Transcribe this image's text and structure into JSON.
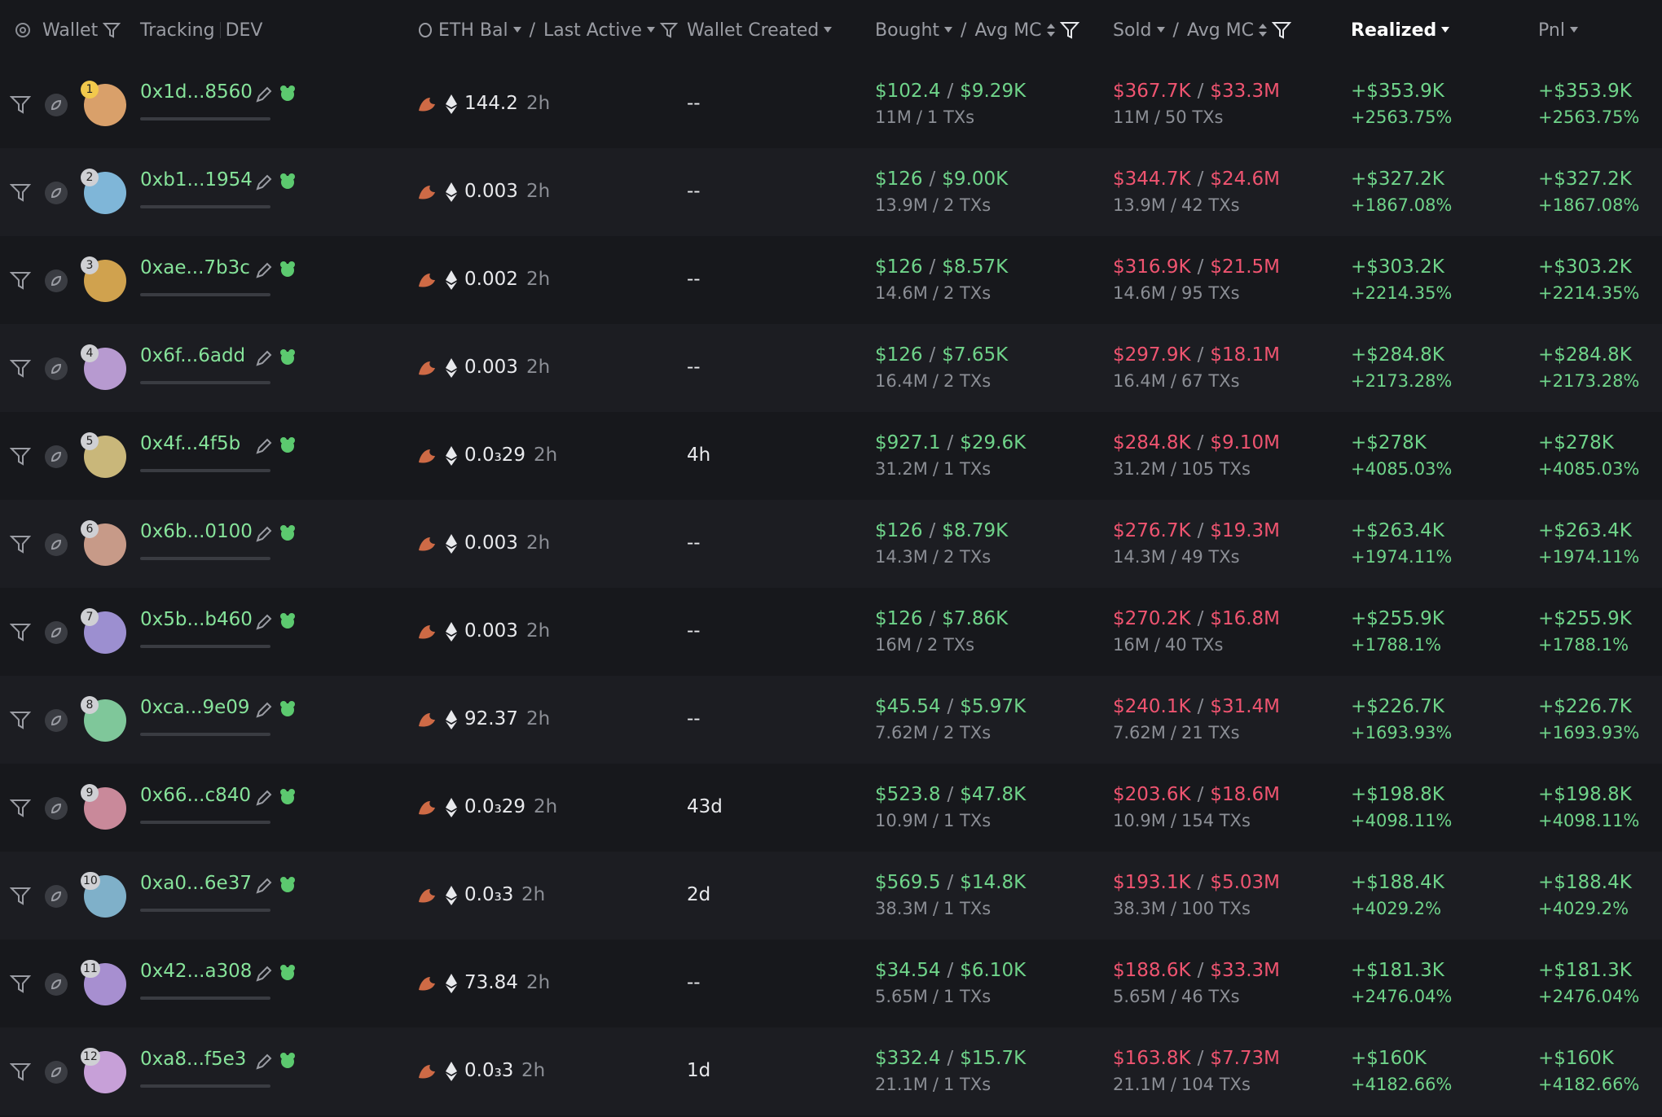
{
  "header": {
    "wallet": "Wallet",
    "tracking": "Tracking",
    "dev": "DEV",
    "eth_bal": "ETH Bal",
    "last_active": "Last Active",
    "wallet_created": "Wallet Created",
    "bought": "Bought",
    "bought_avg_mc": "Avg MC",
    "sold": "Sold",
    "sold_avg_mc": "Avg MC",
    "realized": "Realized",
    "pnl": "Pnl"
  },
  "rows": [
    {
      "rank": "1",
      "wallet": "0x1d...8560",
      "eth_bal": "144.2",
      "last_active": "2h",
      "wallet_created": "--",
      "bought": "$102.4",
      "bought_avg_mc": "$9.29K",
      "bought_amount": "11M",
      "bought_txs": "1 TXs",
      "sold": "$367.7K",
      "sold_avg_mc": "$33.3M",
      "sold_amount": "11M",
      "sold_txs": "50 TXs",
      "realized": "+$353.9K",
      "realized_pct": "+2563.75%",
      "pnl": "+$353.9K",
      "pnl_pct": "+2563.75%"
    },
    {
      "rank": "2",
      "wallet": "0xb1...1954",
      "eth_bal": "0.003",
      "last_active": "2h",
      "wallet_created": "--",
      "bought": "$126",
      "bought_avg_mc": "$9.00K",
      "bought_amount": "13.9M",
      "bought_txs": "2 TXs",
      "sold": "$344.7K",
      "sold_avg_mc": "$24.6M",
      "sold_amount": "13.9M",
      "sold_txs": "42 TXs",
      "realized": "+$327.2K",
      "realized_pct": "+1867.08%",
      "pnl": "+$327.2K",
      "pnl_pct": "+1867.08%"
    },
    {
      "rank": "3",
      "wallet": "0xae...7b3c",
      "eth_bal": "0.002",
      "last_active": "2h",
      "wallet_created": "--",
      "bought": "$126",
      "bought_avg_mc": "$8.57K",
      "bought_amount": "14.6M",
      "bought_txs": "2 TXs",
      "sold": "$316.9K",
      "sold_avg_mc": "$21.5M",
      "sold_amount": "14.6M",
      "sold_txs": "95 TXs",
      "realized": "+$303.2K",
      "realized_pct": "+2214.35%",
      "pnl": "+$303.2K",
      "pnl_pct": "+2214.35%"
    },
    {
      "rank": "4",
      "wallet": "0x6f...6add",
      "eth_bal": "0.003",
      "last_active": "2h",
      "wallet_created": "--",
      "bought": "$126",
      "bought_avg_mc": "$7.65K",
      "bought_amount": "16.4M",
      "bought_txs": "2 TXs",
      "sold": "$297.9K",
      "sold_avg_mc": "$18.1M",
      "sold_amount": "16.4M",
      "sold_txs": "67 TXs",
      "realized": "+$284.8K",
      "realized_pct": "+2173.28%",
      "pnl": "+$284.8K",
      "pnl_pct": "+2173.28%"
    },
    {
      "rank": "5",
      "wallet": "0x4f...4f5b",
      "eth_bal": "0.0₃29",
      "last_active": "2h",
      "wallet_created": "4h",
      "bought": "$927.1",
      "bought_avg_mc": "$29.6K",
      "bought_amount": "31.2M",
      "bought_txs": "1 TXs",
      "sold": "$284.8K",
      "sold_avg_mc": "$9.10M",
      "sold_amount": "31.2M",
      "sold_txs": "105 TXs",
      "realized": "+$278K",
      "realized_pct": "+4085.03%",
      "pnl": "+$278K",
      "pnl_pct": "+4085.03%"
    },
    {
      "rank": "6",
      "wallet": "0x6b...0100",
      "eth_bal": "0.003",
      "last_active": "2h",
      "wallet_created": "--",
      "bought": "$126",
      "bought_avg_mc": "$8.79K",
      "bought_amount": "14.3M",
      "bought_txs": "2 TXs",
      "sold": "$276.7K",
      "sold_avg_mc": "$19.3M",
      "sold_amount": "14.3M",
      "sold_txs": "49 TXs",
      "realized": "+$263.4K",
      "realized_pct": "+1974.11%",
      "pnl": "+$263.4K",
      "pnl_pct": "+1974.11%"
    },
    {
      "rank": "7",
      "wallet": "0x5b...b460",
      "eth_bal": "0.003",
      "last_active": "2h",
      "wallet_created": "--",
      "bought": "$126",
      "bought_avg_mc": "$7.86K",
      "bought_amount": "16M",
      "bought_txs": "2 TXs",
      "sold": "$270.2K",
      "sold_avg_mc": "$16.8M",
      "sold_amount": "16M",
      "sold_txs": "40 TXs",
      "realized": "+$255.9K",
      "realized_pct": "+1788.1%",
      "pnl": "+$255.9K",
      "pnl_pct": "+1788.1%"
    },
    {
      "rank": "8",
      "wallet": "0xca...9e09",
      "eth_bal": "92.37",
      "last_active": "2h",
      "wallet_created": "--",
      "bought": "$45.54",
      "bought_avg_mc": "$5.97K",
      "bought_amount": "7.62M",
      "bought_txs": "2 TXs",
      "sold": "$240.1K",
      "sold_avg_mc": "$31.4M",
      "sold_amount": "7.62M",
      "sold_txs": "21 TXs",
      "realized": "+$226.7K",
      "realized_pct": "+1693.93%",
      "pnl": "+$226.7K",
      "pnl_pct": "+1693.93%"
    },
    {
      "rank": "9",
      "wallet": "0x66...c840",
      "eth_bal": "0.0₃29",
      "last_active": "2h",
      "wallet_created": "43d",
      "bought": "$523.8",
      "bought_avg_mc": "$47.8K",
      "bought_amount": "10.9M",
      "bought_txs": "1 TXs",
      "sold": "$203.6K",
      "sold_avg_mc": "$18.6M",
      "sold_amount": "10.9M",
      "sold_txs": "154 TXs",
      "realized": "+$198.8K",
      "realized_pct": "+4098.11%",
      "pnl": "+$198.8K",
      "pnl_pct": "+4098.11%"
    },
    {
      "rank": "10",
      "wallet": "0xa0...6e37",
      "eth_bal": "0.0₃3",
      "last_active": "2h",
      "wallet_created": "2d",
      "bought": "$569.5",
      "bought_avg_mc": "$14.8K",
      "bought_amount": "38.3M",
      "bought_txs": "1 TXs",
      "sold": "$193.1K",
      "sold_avg_mc": "$5.03M",
      "sold_amount": "38.3M",
      "sold_txs": "100 TXs",
      "realized": "+$188.4K",
      "realized_pct": "+4029.2%",
      "pnl": "+$188.4K",
      "pnl_pct": "+4029.2%"
    },
    {
      "rank": "11",
      "wallet": "0x42...a308",
      "eth_bal": "73.84",
      "last_active": "2h",
      "wallet_created": "--",
      "bought": "$34.54",
      "bought_avg_mc": "$6.10K",
      "bought_amount": "5.65M",
      "bought_txs": "1 TXs",
      "sold": "$188.6K",
      "sold_avg_mc": "$33.3M",
      "sold_amount": "5.65M",
      "sold_txs": "46 TXs",
      "realized": "+$181.3K",
      "realized_pct": "+2476.04%",
      "pnl": "+$181.3K",
      "pnl_pct": "+2476.04%"
    },
    {
      "rank": "12",
      "wallet": "0xa8...f5e3",
      "eth_bal": "0.0₃3",
      "last_active": "2h",
      "wallet_created": "1d",
      "bought": "$332.4",
      "bought_avg_mc": "$15.7K",
      "bought_amount": "21.1M",
      "bought_txs": "1 TXs",
      "sold": "$163.8K",
      "sold_avg_mc": "$7.73M",
      "sold_amount": "21.1M",
      "sold_txs": "104 TXs",
      "realized": "+$160K",
      "realized_pct": "+4182.66%",
      "pnl": "+$160K",
      "pnl_pct": "+4182.66%"
    }
  ]
}
